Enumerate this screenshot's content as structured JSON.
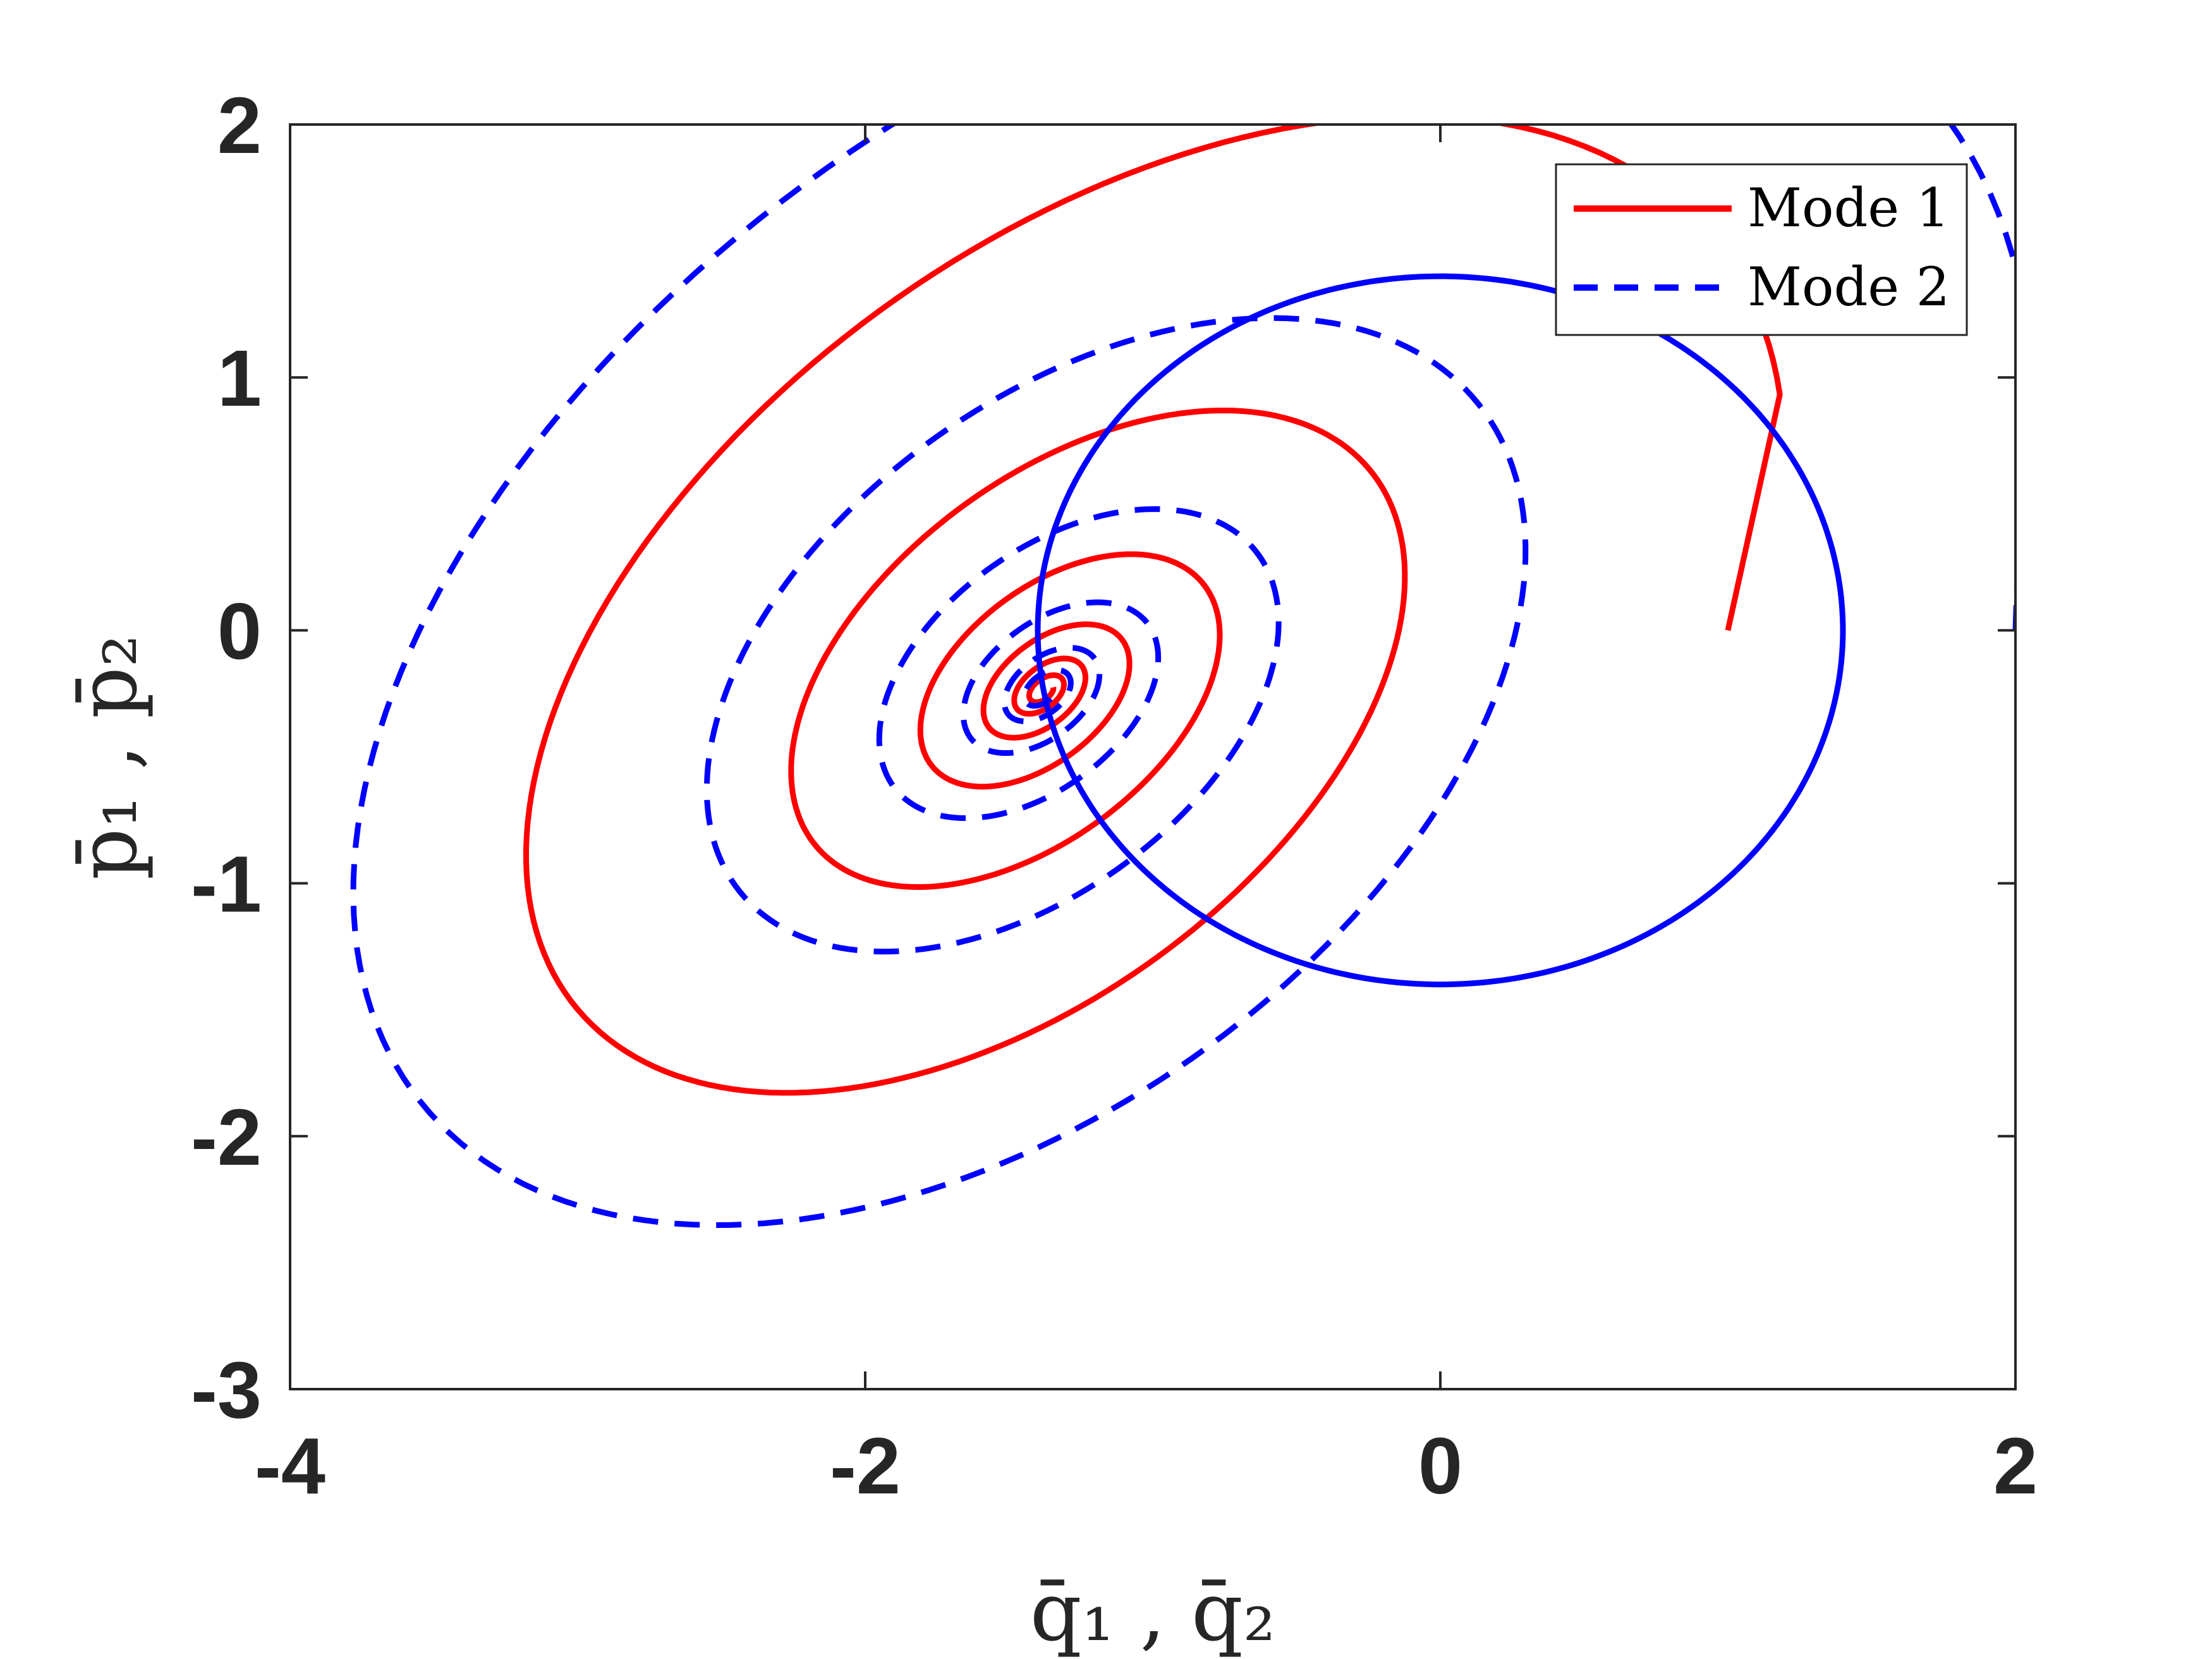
{
  "chart_data": {
    "type": "line",
    "xlabel": "q̄₁ , q̄₂",
    "ylabel": "p̄₁ , p̄₂",
    "xlim": [
      -4,
      2
    ],
    "ylim": [
      -3,
      2
    ],
    "xticks": [
      -4,
      -2,
      0,
      2
    ],
    "yticks": [
      -3,
      -2,
      -1,
      0,
      1,
      2
    ],
    "x_tick_labels": [
      "-4",
      "-2",
      "0",
      "2"
    ],
    "y_tick_labels": [
      "-3",
      "-2",
      "-1",
      "0",
      "1",
      "2"
    ],
    "grid": false,
    "box": true,
    "legend_position": "top-right",
    "series": [
      {
        "name": "Mode 1",
        "color": "#ff0000",
        "style": "solid",
        "description": "damped spiral",
        "start": [
          1.0,
          0.0
        ],
        "center": [
          -1.38,
          -0.24
        ],
        "extent": {
          "x_min": -3.95,
          "x_max": 1.0,
          "y_min": -2.35,
          "y_max": 1.7
        }
      },
      {
        "name": "Mode 2",
        "color": "#0000ff",
        "style": "dashed",
        "description": "damped spiral",
        "start": [
          2.0,
          0.0
        ],
        "center": [
          -1.38,
          -0.24
        ],
        "extent": {
          "x_min": -3.2,
          "x_max": 2.0,
          "y_min": -2.35,
          "y_max": 1.7
        }
      },
      {
        "color": "#0000ff",
        "style": "solid",
        "description": "circle of radius 1.4 about the origin",
        "center": [
          0,
          0
        ],
        "radius": 1.4
      }
    ]
  }
}
